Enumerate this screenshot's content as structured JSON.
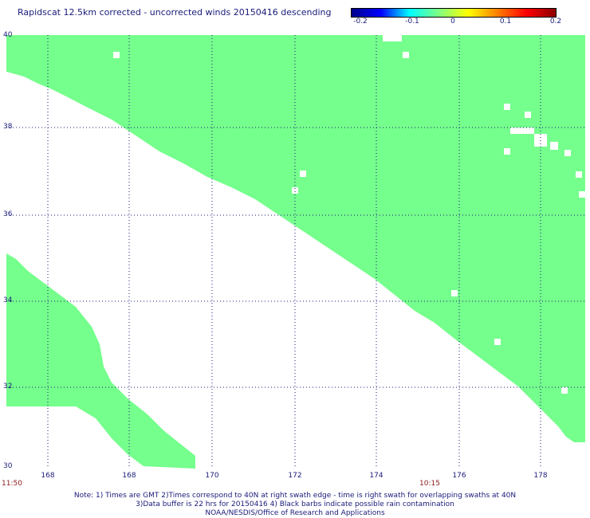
{
  "title": "Rapidscat 12.5km corrected - uncorrected winds 20150416 descending",
  "colorbar": {
    "labels": [
      "-0.2",
      "-0.1",
      "0",
      "0.1",
      "0.2"
    ],
    "stops": [
      "#00008b",
      "#0000ff",
      "#00ffff",
      "#80ff80",
      "#ffff00",
      "#ff8000",
      "#ff0000",
      "#8b0000"
    ]
  },
  "colors": {
    "swath": "#75ff8c",
    "grid": "#1a1a7a",
    "time": "#8b1a1a"
  },
  "map": {
    "lat_labels": [
      "40",
      "38",
      "36",
      "34",
      "32",
      "30"
    ],
    "lon_labels": [
      "168",
      "168",
      "170",
      "172",
      "174",
      "176",
      "178"
    ],
    "times": [
      "11:50",
      "10:15"
    ]
  },
  "notes": [
    "Note: 1) Times are GMT 2)Times correspond to 40N at right swath edge - time is right swath for overlapping swaths at 40N",
    "3)Data buffer is 22 hrs for 20150416 4) Black barbs indicate possible rain contamination",
    "NOAA/NESDIS/Office of Research and Applications"
  ]
}
